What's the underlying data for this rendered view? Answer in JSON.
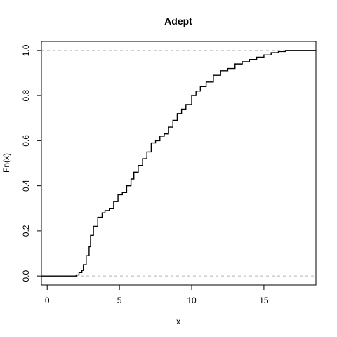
{
  "chart_data": {
    "type": "line",
    "title": "Adept",
    "xlabel": "x",
    "ylabel": "Fn(x)",
    "xlim": [
      -0.4,
      18.6
    ],
    "ylim": [
      -0.04,
      1.04
    ],
    "x_ticks": [
      0,
      5,
      10,
      15
    ],
    "y_ticks": [
      0.0,
      0.2,
      0.4,
      0.6,
      0.8,
      1.0
    ],
    "x_tick_labels": [
      "0",
      "5",
      "10",
      "15"
    ],
    "y_tick_labels": [
      "0.0",
      "0.2",
      "0.4",
      "0.6",
      "0.8",
      "1.0"
    ],
    "reference_lines": [
      0,
      1
    ],
    "series": [
      {
        "x": [
          -0.4,
          1.8,
          2.0,
          2.2,
          2.4,
          2.5,
          2.7,
          2.9,
          3.0,
          3.2,
          3.5,
          3.8,
          4.0,
          4.3,
          4.6,
          4.9,
          5.2,
          5.5,
          5.8,
          6.0,
          6.3,
          6.6,
          6.9,
          7.2,
          7.5,
          7.8,
          8.1,
          8.4,
          8.7,
          9.0,
          9.3,
          9.6,
          10.0,
          10.3,
          10.6,
          11.0,
          11.5,
          12.0,
          12.5,
          13.0,
          13.5,
          14.0,
          14.5,
          15.0,
          15.5,
          16.0,
          16.5,
          17.0,
          18.6
        ],
        "y": [
          0.0,
          0.0,
          0.005,
          0.015,
          0.025,
          0.05,
          0.09,
          0.13,
          0.18,
          0.22,
          0.26,
          0.28,
          0.29,
          0.3,
          0.33,
          0.36,
          0.37,
          0.4,
          0.43,
          0.46,
          0.49,
          0.52,
          0.55,
          0.59,
          0.6,
          0.62,
          0.63,
          0.66,
          0.69,
          0.72,
          0.74,
          0.76,
          0.8,
          0.82,
          0.84,
          0.86,
          0.89,
          0.91,
          0.92,
          0.94,
          0.95,
          0.96,
          0.97,
          0.98,
          0.99,
          0.995,
          1.0,
          1.0,
          1.0
        ]
      }
    ]
  }
}
